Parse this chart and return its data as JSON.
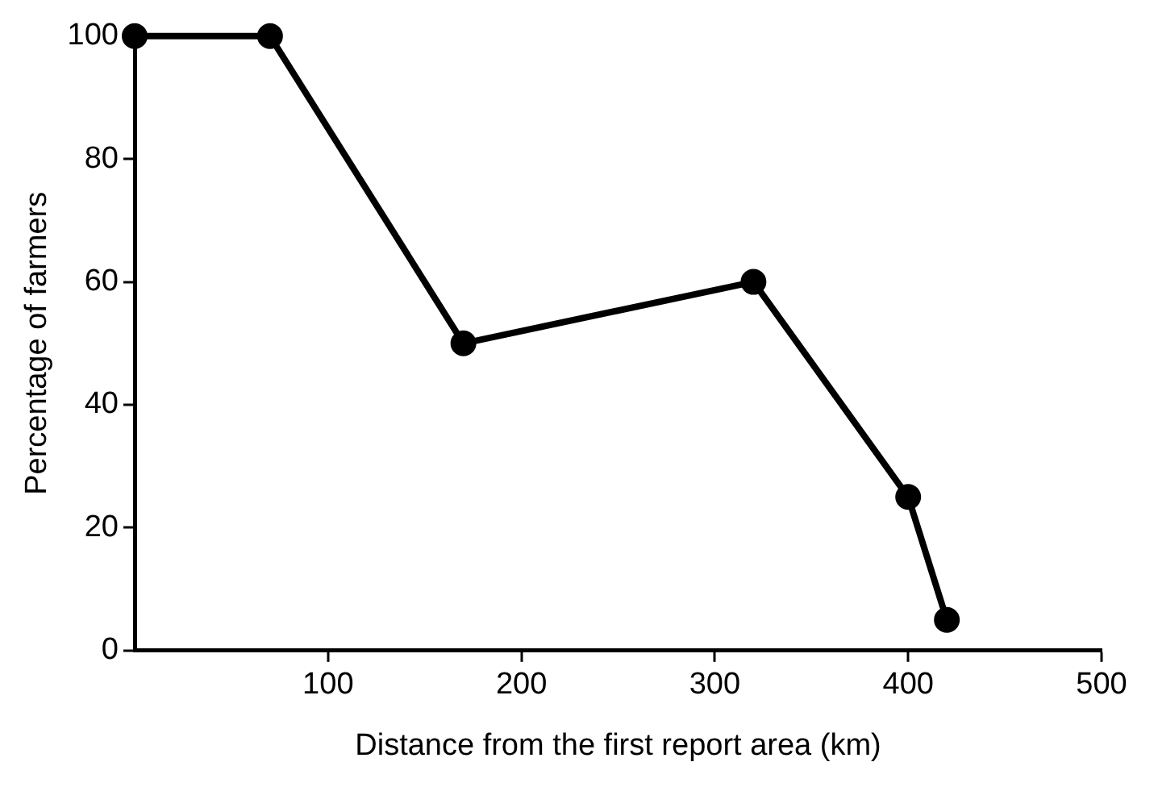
{
  "chart_data": {
    "type": "line",
    "xlabel": "Distance from the first report area (km)",
    "ylabel": "Percentage of farmers",
    "x": [
      0,
      70,
      170,
      320,
      400,
      420
    ],
    "series": [
      {
        "color": "#000000",
        "values": [
          100,
          100,
          50,
          60,
          25,
          5
        ]
      }
    ],
    "xlim": [
      0,
      500
    ],
    "xticks": [
      100,
      200,
      300,
      400,
      500
    ],
    "ylim": [
      0,
      100
    ],
    "yticks": [
      0,
      20,
      40,
      60,
      80,
      100
    ],
    "grid": false,
    "legend": false,
    "marker": "circle",
    "line_style": "solid"
  }
}
